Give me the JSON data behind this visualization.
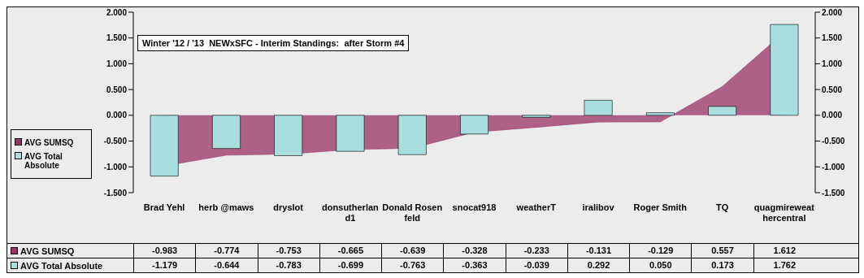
{
  "chart_data": {
    "type": "bar",
    "title": "Winter '12 / '13  NEWxSFC - Interim Standings:  after Storm #4",
    "categories": [
      "Brad Yehl",
      "herb @maws",
      "dryslot",
      "donsutherland1",
      "Donald Rosenfeld",
      "snocat918",
      "weatherT",
      "iralibov",
      "Roger Smith",
      "TQ",
      "quagmireweathercentral"
    ],
    "series": [
      {
        "name": "AVG SUMSQ",
        "type": "area",
        "color": "#993366",
        "values": [
          -0.983,
          -0.774,
          -0.753,
          -0.665,
          -0.639,
          -0.328,
          -0.233,
          -0.131,
          -0.129,
          0.557,
          1.612
        ],
        "value_labels": [
          "-0.983",
          "-0.774",
          "-0.753",
          "-0.665",
          "-0.639",
          "-0.328",
          "-0.233",
          "-0.131",
          "-0.129",
          "0.557",
          "1.612"
        ]
      },
      {
        "name": "AVG Total Absolute",
        "color": "#a8dede",
        "values": [
          -1.179,
          -0.644,
          -0.783,
          -0.699,
          -0.763,
          -0.363,
          -0.039,
          0.292,
          0.05,
          0.173,
          1.762
        ],
        "value_labels": [
          "-1.179",
          "-0.644",
          "-0.783",
          "-0.699",
          "-0.763",
          "-0.363",
          "-0.039",
          "0.292",
          "0.050",
          "0.173",
          "1.762"
        ]
      }
    ],
    "ylim": [
      -1.5,
      2
    ],
    "yticks": [
      {
        "value": -1.5,
        "label": "-1.500"
      },
      {
        "value": -1,
        "label": "-1.000"
      },
      {
        "value": -0.5,
        "label": "-0.500"
      },
      {
        "value": 0,
        "label": "0.000"
      },
      {
        "value": 0.5,
        "label": "0.500"
      },
      {
        "value": 1,
        "label": "1.000"
      },
      {
        "value": 1.5,
        "label": "1.500"
      },
      {
        "value": 2,
        "label": "2.000"
      }
    ],
    "y2lim": [
      -1.5,
      2
    ],
    "y2ticks": [
      {
        "value": -1.5,
        "label": "-1.500"
      },
      {
        "value": -1,
        "label": "-1.000"
      },
      {
        "value": -0.5,
        "label": "-0.500"
      },
      {
        "value": 0,
        "label": "0.000"
      },
      {
        "value": 0.5,
        "label": "0.500"
      },
      {
        "value": 1,
        "label": "1.000"
      },
      {
        "value": 1.5,
        "label": "1.500"
      },
      {
        "value": 2,
        "label": "2.000"
      }
    ],
    "grid": false,
    "legend": "left"
  }
}
